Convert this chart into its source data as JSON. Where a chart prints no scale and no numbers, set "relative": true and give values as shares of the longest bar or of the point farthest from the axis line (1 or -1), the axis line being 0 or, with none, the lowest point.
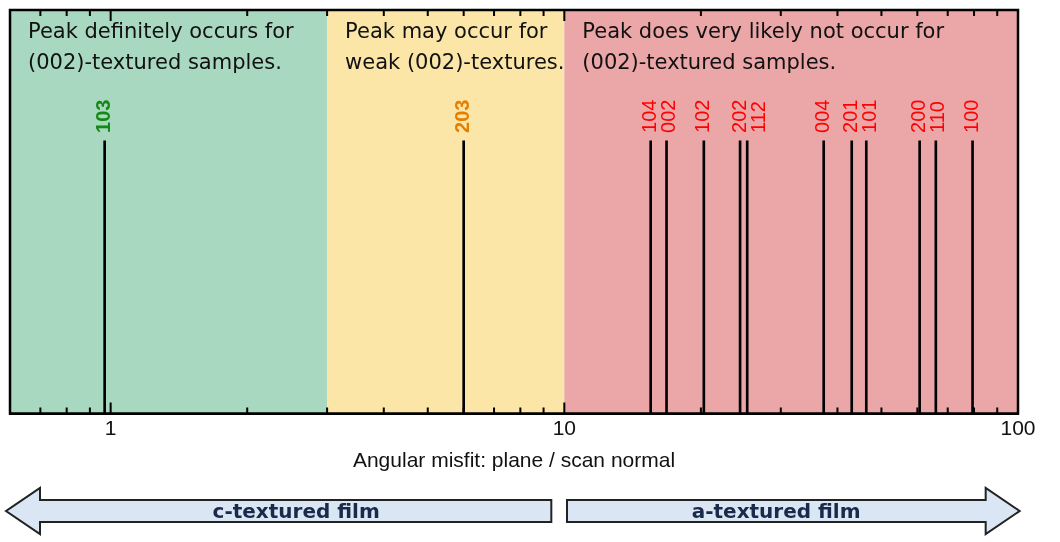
{
  "chart_data": {
    "type": "bar",
    "relative": true,
    "xlabel": "Angular misfit: plane / scan normal",
    "log": "x",
    "legend": false,
    "xlim": [
      0.6,
      100
    ],
    "xticks": [
      {
        "value": 0.7,
        "label": null
      },
      {
        "value": 0.8,
        "label": null
      },
      {
        "value": 0.9,
        "label": null
      },
      1,
      {
        "value": 2,
        "label": null
      },
      {
        "value": 3,
        "label": null
      },
      {
        "value": 4,
        "label": null
      },
      {
        "value": 5,
        "label": null
      },
      {
        "value": 6,
        "label": null
      },
      {
        "value": 7,
        "label": null
      },
      {
        "value": 8,
        "label": null
      },
      {
        "value": 9,
        "label": null
      },
      10,
      {
        "value": 20,
        "label": null
      },
      {
        "value": 30,
        "label": null
      },
      {
        "value": 40,
        "label": null
      },
      {
        "value": 50,
        "label": null
      },
      {
        "value": 60,
        "label": null
      },
      {
        "value": 70,
        "label": null
      },
      {
        "value": 80,
        "label": null
      },
      {
        "value": 90,
        "label": null
      },
      100
    ],
    "series": [
      {
        "color": "#000000",
        "x": [
          0.97,
          6.0,
          15.5,
          16.8,
          20.3,
          24.4,
          25.3,
          37.3,
          43.0,
          46.3,
          60.7,
          65.9,
          79.4
        ],
        "values": [
          1,
          1,
          1,
          1,
          1,
          1,
          1,
          1,
          1,
          1,
          1,
          1,
          1
        ]
      }
    ],
    "bands": [
      {
        "axis": "x",
        "from": 0.6,
        "to": 3.0,
        "label": "Peak definitely occurs for\n(002)-textured samples.",
        "color": "#a8d8c0"
      },
      {
        "axis": "x",
        "from": 3.0,
        "to": 10,
        "label": "Peak may occur for\nweak (002)-textures.",
        "color": "#fbe6a8"
      },
      {
        "axis": "x",
        "from": 10,
        "to": 100,
        "label": "Peak does very likely not occur for\n(002)-textured samples.",
        "color": "#eba6a8"
      }
    ],
    "annotations": [
      "c-textured film",
      "a-textured film",
      {
        "text": "103",
        "x": 0.97,
        "y": 1
      },
      {
        "text": "203",
        "x": 6.0,
        "y": 1
      },
      {
        "text": "104",
        "x": 15.5,
        "y": 1
      },
      {
        "text": "002",
        "x": 16.8,
        "y": 1
      },
      {
        "text": "102",
        "x": 20.3,
        "y": 1
      },
      {
        "text": "202",
        "x": 24.4,
        "y": 1
      },
      {
        "text": "112",
        "x": 25.3,
        "y": 1
      },
      {
        "text": "004",
        "x": 37.3,
        "y": 1
      },
      {
        "text": "201",
        "x": 43.0,
        "y": 1
      },
      {
        "text": "101",
        "x": 46.3,
        "y": 1
      },
      {
        "text": "200",
        "x": 60.7,
        "y": 1
      },
      {
        "text": "110",
        "x": 65.9,
        "y": 1
      },
      {
        "text": "100",
        "x": 79.4,
        "y": 1
      }
    ]
  }
}
